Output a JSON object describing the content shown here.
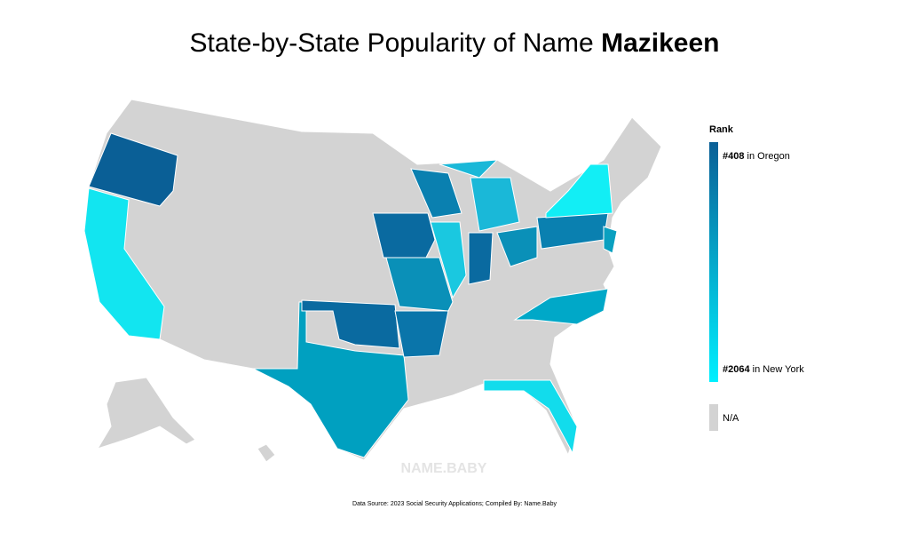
{
  "title": {
    "prefix": "State-by-State Popularity of Name",
    "name": "Mazikeen"
  },
  "legend": {
    "title": "Rank",
    "top": {
      "rank": "#408",
      "state": "in Oregon"
    },
    "bottom": {
      "rank": "#2064",
      "state": "in New York"
    },
    "na": "N/A"
  },
  "watermark": "NAME.BABY",
  "source": "Data Source: 2023 Social Security Applications; Compiled By: Name.Baby"
}
